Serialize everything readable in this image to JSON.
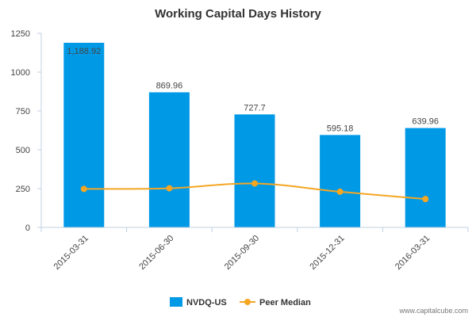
{
  "chart_data": {
    "type": "bar",
    "title": "Working Capital Days History",
    "categories": [
      "2015-03-31",
      "2015-06-30",
      "2015-09-30",
      "2015-12-31",
      "2016-03-31"
    ],
    "series": [
      {
        "name": "NVDQ-US",
        "kind": "bar",
        "color": "#0099e6",
        "values": [
          1188.92,
          869.96,
          727.7,
          595.18,
          639.96
        ],
        "labels": [
          "1,188.92",
          "869.96",
          "727.7",
          "595.18",
          "639.96"
        ]
      },
      {
        "name": "Peer Median",
        "kind": "line",
        "color": "#f5a623",
        "values": [
          248,
          252,
          283,
          230,
          183
        ]
      }
    ],
    "ylim": [
      0,
      1250
    ],
    "yticks": [
      0,
      250,
      500,
      750,
      1000,
      1250
    ],
    "grid": false,
    "legend": "bottom-center"
  },
  "credit": "www.capitalcube.com",
  "colors": {
    "axis": "#c0d0e0",
    "text": "#333333"
  }
}
